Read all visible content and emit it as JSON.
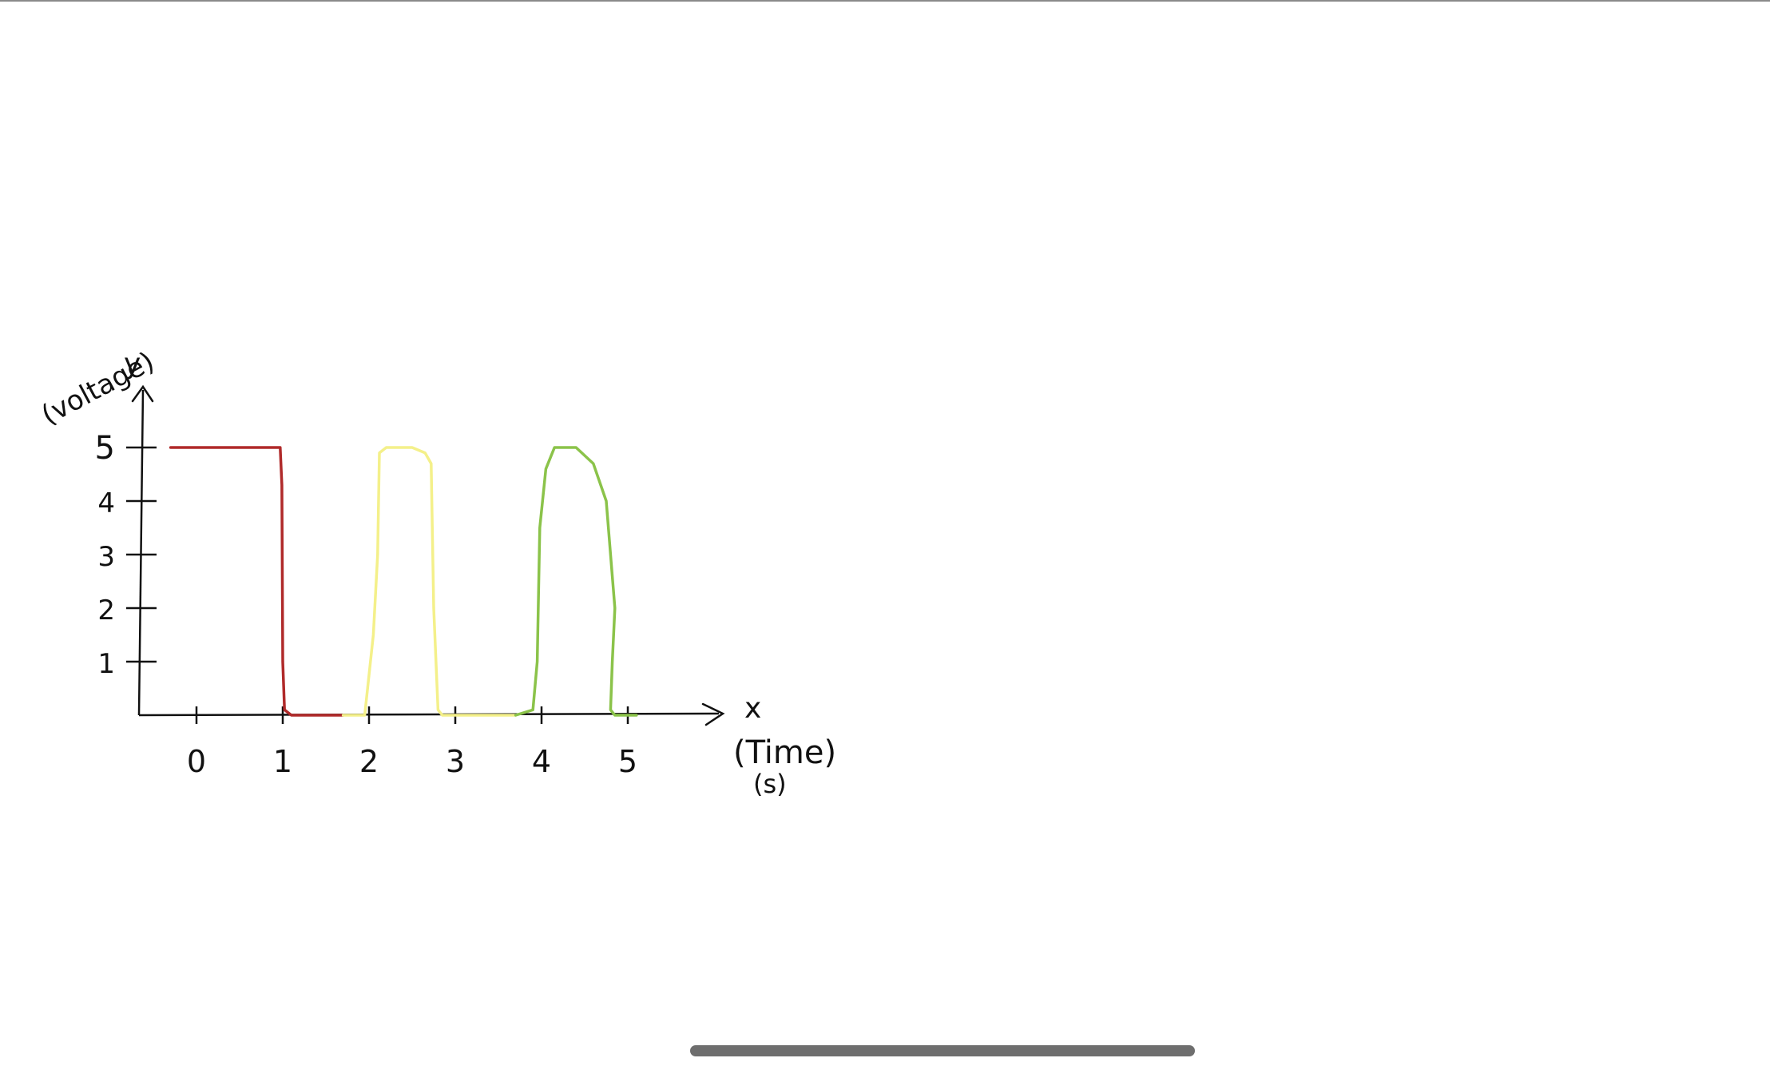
{
  "chart_data": {
    "type": "line",
    "xlabel": "(Time) (s)",
    "ylabel": "(voltage)",
    "x_axis_letter": "x",
    "y_axis_letter": "y",
    "x_ticks": [
      "0",
      "1",
      "2",
      "3",
      "4",
      "5"
    ],
    "y_ticks": [
      "1",
      "2",
      "3",
      "4",
      "5"
    ],
    "xlim": [
      -0.6,
      6.0
    ],
    "ylim": [
      0,
      5.5
    ],
    "grid": false,
    "series": [
      {
        "color": "#b02a2a",
        "x": [
          -0.3,
          0.97,
          0.99,
          1.0,
          1.02,
          1.1,
          1.4,
          1.7
        ],
        "y": [
          5.0,
          5.0,
          4.3,
          1.0,
          0.1,
          0.0,
          0.0,
          0.0
        ]
      },
      {
        "color": "#f4f08a",
        "x": [
          1.7,
          1.95,
          2.05,
          2.1,
          2.12,
          2.2,
          2.5,
          2.65,
          2.72,
          2.75,
          2.8,
          2.85,
          3.0,
          3.3,
          3.7
        ],
        "y": [
          0.0,
          0.0,
          1.5,
          3.0,
          4.9,
          5.0,
          5.0,
          4.9,
          4.7,
          2.0,
          0.1,
          0.0,
          0.0,
          0.0,
          0.0
        ]
      },
      {
        "color": "#8bc34a",
        "x": [
          3.7,
          3.9,
          3.95,
          3.98,
          4.05,
          4.15,
          4.4,
          4.6,
          4.75,
          4.85,
          4.82,
          4.8,
          4.85,
          5.1
        ],
        "y": [
          0.0,
          0.1,
          1.0,
          3.5,
          4.6,
          5.0,
          5.0,
          4.7,
          4.0,
          2.0,
          1.0,
          0.1,
          0.0,
          0.0
        ]
      }
    ]
  },
  "colors": {
    "axis": "#111111",
    "home_indicator": "#6e6e6e",
    "top_rule": "#8a8a8a"
  }
}
